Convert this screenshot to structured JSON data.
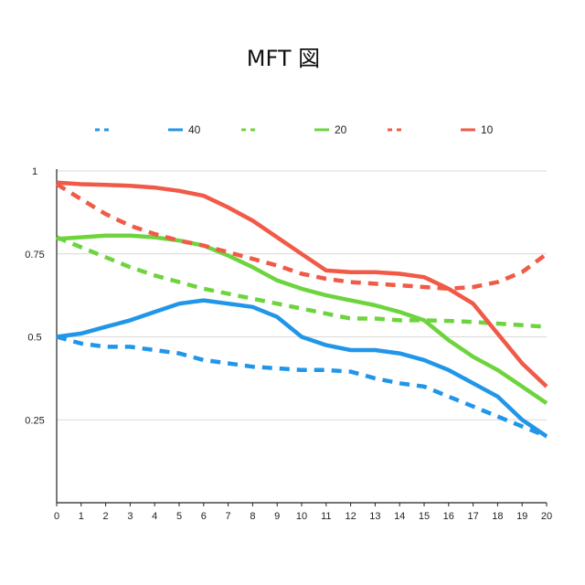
{
  "chart_data": {
    "type": "line",
    "title": "MFT 図",
    "xlabel": "",
    "ylabel": "",
    "x": [
      0,
      1,
      2,
      3,
      4,
      5,
      6,
      7,
      8,
      9,
      10,
      11,
      12,
      13,
      14,
      15,
      16,
      17,
      18,
      19,
      20
    ],
    "xlim": [
      0,
      20
    ],
    "ylim": [
      0,
      1
    ],
    "yticks": [
      0.25,
      0.5,
      0.75,
      1
    ],
    "ytick_labels": [
      "0.25",
      "0.5",
      "0.75",
      "1"
    ],
    "grid": "horizontal",
    "legend_position": "top",
    "series": [
      {
        "name": "",
        "color": "#2196E8",
        "style": "dashed",
        "values": [
          0.5,
          0.48,
          0.47,
          0.47,
          0.46,
          0.45,
          0.43,
          0.42,
          0.41,
          0.405,
          0.4,
          0.4,
          0.395,
          0.375,
          0.36,
          0.35,
          0.32,
          0.29,
          0.26,
          0.23,
          0.2
        ]
      },
      {
        "name": "40",
        "color": "#2196E8",
        "style": "solid",
        "values": [
          0.5,
          0.51,
          0.53,
          0.55,
          0.575,
          0.6,
          0.61,
          0.6,
          0.59,
          0.56,
          0.5,
          0.475,
          0.46,
          0.46,
          0.45,
          0.43,
          0.4,
          0.36,
          0.32,
          0.25,
          0.2
        ]
      },
      {
        "name": "",
        "color": "#6DD43E",
        "style": "dashed",
        "values": [
          0.8,
          0.77,
          0.74,
          0.71,
          0.685,
          0.665,
          0.645,
          0.63,
          0.615,
          0.6,
          0.585,
          0.57,
          0.555,
          0.555,
          0.55,
          0.55,
          0.548,
          0.545,
          0.54,
          0.535,
          0.53
        ]
      },
      {
        "name": "20",
        "color": "#6DD43E",
        "style": "solid",
        "values": [
          0.795,
          0.8,
          0.805,
          0.805,
          0.8,
          0.79,
          0.775,
          0.745,
          0.71,
          0.67,
          0.645,
          0.625,
          0.61,
          0.595,
          0.575,
          0.55,
          0.49,
          0.44,
          0.4,
          0.35,
          0.3
        ]
      },
      {
        "name": "",
        "color": "#F05A47",
        "style": "dashed",
        "values": [
          0.96,
          0.915,
          0.87,
          0.835,
          0.81,
          0.79,
          0.775,
          0.755,
          0.735,
          0.715,
          0.69,
          0.675,
          0.665,
          0.66,
          0.655,
          0.65,
          0.645,
          0.65,
          0.665,
          0.695,
          0.75
        ]
      },
      {
        "name": "10",
        "color": "#F05A47",
        "style": "solid",
        "values": [
          0.965,
          0.96,
          0.958,
          0.955,
          0.95,
          0.94,
          0.925,
          0.89,
          0.85,
          0.8,
          0.75,
          0.7,
          0.695,
          0.695,
          0.69,
          0.68,
          0.645,
          0.6,
          0.51,
          0.42,
          0.35
        ]
      }
    ]
  }
}
